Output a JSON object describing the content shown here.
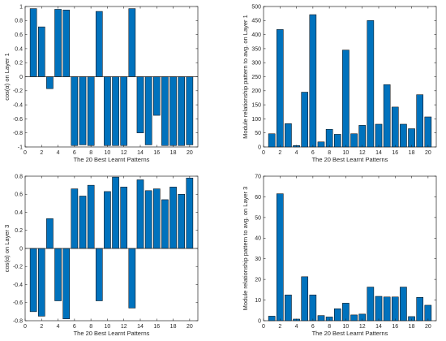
{
  "chart_data": [
    {
      "type": "bar",
      "xlabel": "The 20 Best Learnt Patterns",
      "ylabel": "cos(α) on Layer 1",
      "xlim": [
        0,
        21
      ],
      "ylim": [
        -1,
        1
      ],
      "xticks": [
        0,
        2,
        4,
        6,
        8,
        10,
        12,
        14,
        16,
        18,
        20
      ],
      "yticks": [
        -1,
        -0.8,
        -0.6,
        -0.4,
        -0.2,
        0,
        0.2,
        0.4,
        0.6,
        0.8,
        1
      ],
      "ytick_labels": [
        "-1",
        "-0.8",
        "-0.6",
        "-0.4",
        "-0.2",
        "0",
        "0.2",
        "0.4",
        "0.6",
        "0.8",
        "1"
      ],
      "bar_color": "#0072BD",
      "x": [
        1,
        2,
        3,
        4,
        5,
        6,
        7,
        8,
        9,
        10,
        11,
        12,
        13,
        14,
        15,
        16,
        17,
        18,
        19,
        20
      ],
      "values": [
        0.97,
        0.71,
        -0.17,
        0.96,
        0.95,
        -0.98,
        -0.97,
        -0.98,
        0.93,
        -0.98,
        -0.98,
        -0.98,
        0.97,
        -0.8,
        -0.97,
        -0.55,
        -0.98,
        -0.98,
        -0.98,
        -0.97
      ]
    },
    {
      "type": "bar",
      "xlabel": "The 20 Best Learnt Patterns",
      "ylabel": "Module relationship pattern to avg. on Layer 1",
      "xlim": [
        0,
        21
      ],
      "ylim": [
        0,
        500
      ],
      "xticks": [
        0,
        2,
        4,
        6,
        8,
        10,
        12,
        14,
        16,
        18,
        20
      ],
      "yticks": [
        0,
        50,
        100,
        150,
        200,
        250,
        300,
        350,
        400,
        450,
        500
      ],
      "ytick_labels": [
        "0",
        "50",
        "100",
        "150",
        "200",
        "250",
        "300",
        "350",
        "400",
        "450",
        "500"
      ],
      "bar_color": "#0072BD",
      "x": [
        1,
        2,
        3,
        4,
        5,
        6,
        7,
        8,
        9,
        10,
        11,
        12,
        13,
        14,
        15,
        16,
        17,
        18,
        19,
        20
      ],
      "values": [
        47,
        418,
        83,
        5,
        195,
        471,
        18,
        63,
        45,
        345,
        47,
        77,
        450,
        81,
        222,
        142,
        81,
        65,
        186,
        107
      ]
    },
    {
      "type": "bar",
      "xlabel": "The 20 Best Learnt Patterns",
      "ylabel": "cos(α) on Layer 3",
      "xlim": [
        0,
        21
      ],
      "ylim": [
        -0.8,
        0.8
      ],
      "xticks": [
        0,
        2,
        4,
        6,
        8,
        10,
        12,
        14,
        16,
        18,
        20
      ],
      "yticks": [
        -0.8,
        -0.6,
        -0.4,
        -0.2,
        0,
        0.2,
        0.4,
        0.6,
        0.8
      ],
      "ytick_labels": [
        "-0.8",
        "-0.6",
        "-0.4",
        "-0.2",
        "0",
        "0.2",
        "0.4",
        "0.6",
        "0.8"
      ],
      "bar_color": "#0072BD",
      "x": [
        1,
        2,
        3,
        4,
        5,
        6,
        7,
        8,
        9,
        10,
        11,
        12,
        13,
        14,
        15,
        16,
        17,
        18,
        19,
        20
      ],
      "values": [
        -0.7,
        -0.75,
        0.33,
        -0.58,
        -0.78,
        0.66,
        0.58,
        0.7,
        -0.58,
        0.63,
        0.79,
        0.68,
        -0.66,
        0.76,
        0.64,
        0.66,
        0.54,
        0.68,
        0.6,
        0.78
      ]
    },
    {
      "type": "bar",
      "xlabel": "The 20 Best Learnt Patterns",
      "ylabel": "Module relationship pattern to avg. on Layer 3",
      "xlim": [
        0,
        21
      ],
      "ylim": [
        0,
        70
      ],
      "xticks": [
        0,
        2,
        4,
        6,
        8,
        10,
        12,
        14,
        16,
        18,
        20
      ],
      "yticks": [
        0,
        10,
        20,
        30,
        40,
        50,
        60,
        70
      ],
      "ytick_labels": [
        "0",
        "10",
        "20",
        "30",
        "40",
        "50",
        "60",
        "70"
      ],
      "bar_color": "#0072BD",
      "x": [
        1,
        2,
        3,
        4,
        5,
        6,
        7,
        8,
        9,
        10,
        11,
        12,
        13,
        14,
        15,
        16,
        17,
        18,
        19,
        20
      ],
      "values": [
        2.2,
        61.5,
        12.5,
        0.8,
        21.3,
        12.5,
        2.5,
        1.8,
        5.8,
        8.5,
        2.8,
        3.2,
        16.3,
        11.8,
        11.5,
        11.5,
        16.3,
        2.0,
        11.3,
        7.5
      ]
    }
  ]
}
